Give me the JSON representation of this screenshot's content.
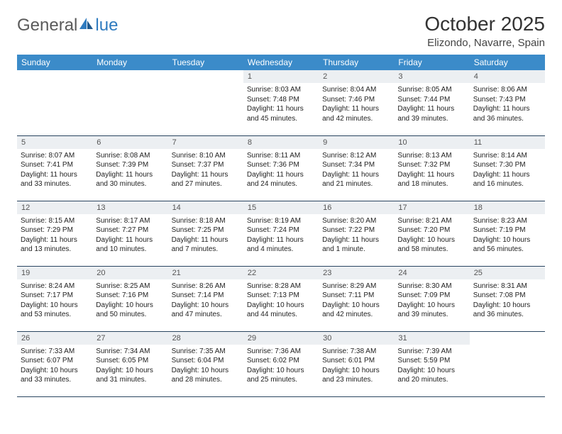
{
  "logo": {
    "part1": "General",
    "part2": "lue"
  },
  "title": "October 2025",
  "subtitle": "Elizondo, Navarre, Spain",
  "colors": {
    "header_bg": "#3b8bc9",
    "header_text": "#ffffff",
    "daynum_bg": "#eceff2",
    "row_border": "#2a4560",
    "logo_gray": "#5a5a5a",
    "logo_blue": "#2f7bbf"
  },
  "day_headers": [
    "Sunday",
    "Monday",
    "Tuesday",
    "Wednesday",
    "Thursday",
    "Friday",
    "Saturday"
  ],
  "weeks": [
    [
      {
        "n": "",
        "sr": "",
        "ss": "",
        "dl": ""
      },
      {
        "n": "",
        "sr": "",
        "ss": "",
        "dl": ""
      },
      {
        "n": "",
        "sr": "",
        "ss": "",
        "dl": ""
      },
      {
        "n": "1",
        "sr": "8:03 AM",
        "ss": "7:48 PM",
        "dl": "11 hours and 45 minutes."
      },
      {
        "n": "2",
        "sr": "8:04 AM",
        "ss": "7:46 PM",
        "dl": "11 hours and 42 minutes."
      },
      {
        "n": "3",
        "sr": "8:05 AM",
        "ss": "7:44 PM",
        "dl": "11 hours and 39 minutes."
      },
      {
        "n": "4",
        "sr": "8:06 AM",
        "ss": "7:43 PM",
        "dl": "11 hours and 36 minutes."
      }
    ],
    [
      {
        "n": "5",
        "sr": "8:07 AM",
        "ss": "7:41 PM",
        "dl": "11 hours and 33 minutes."
      },
      {
        "n": "6",
        "sr": "8:08 AM",
        "ss": "7:39 PM",
        "dl": "11 hours and 30 minutes."
      },
      {
        "n": "7",
        "sr": "8:10 AM",
        "ss": "7:37 PM",
        "dl": "11 hours and 27 minutes."
      },
      {
        "n": "8",
        "sr": "8:11 AM",
        "ss": "7:36 PM",
        "dl": "11 hours and 24 minutes."
      },
      {
        "n": "9",
        "sr": "8:12 AM",
        "ss": "7:34 PM",
        "dl": "11 hours and 21 minutes."
      },
      {
        "n": "10",
        "sr": "8:13 AM",
        "ss": "7:32 PM",
        "dl": "11 hours and 18 minutes."
      },
      {
        "n": "11",
        "sr": "8:14 AM",
        "ss": "7:30 PM",
        "dl": "11 hours and 16 minutes."
      }
    ],
    [
      {
        "n": "12",
        "sr": "8:15 AM",
        "ss": "7:29 PM",
        "dl": "11 hours and 13 minutes."
      },
      {
        "n": "13",
        "sr": "8:17 AM",
        "ss": "7:27 PM",
        "dl": "11 hours and 10 minutes."
      },
      {
        "n": "14",
        "sr": "8:18 AM",
        "ss": "7:25 PM",
        "dl": "11 hours and 7 minutes."
      },
      {
        "n": "15",
        "sr": "8:19 AM",
        "ss": "7:24 PM",
        "dl": "11 hours and 4 minutes."
      },
      {
        "n": "16",
        "sr": "8:20 AM",
        "ss": "7:22 PM",
        "dl": "11 hours and 1 minute."
      },
      {
        "n": "17",
        "sr": "8:21 AM",
        "ss": "7:20 PM",
        "dl": "10 hours and 58 minutes."
      },
      {
        "n": "18",
        "sr": "8:23 AM",
        "ss": "7:19 PM",
        "dl": "10 hours and 56 minutes."
      }
    ],
    [
      {
        "n": "19",
        "sr": "8:24 AM",
        "ss": "7:17 PM",
        "dl": "10 hours and 53 minutes."
      },
      {
        "n": "20",
        "sr": "8:25 AM",
        "ss": "7:16 PM",
        "dl": "10 hours and 50 minutes."
      },
      {
        "n": "21",
        "sr": "8:26 AM",
        "ss": "7:14 PM",
        "dl": "10 hours and 47 minutes."
      },
      {
        "n": "22",
        "sr": "8:28 AM",
        "ss": "7:13 PM",
        "dl": "10 hours and 44 minutes."
      },
      {
        "n": "23",
        "sr": "8:29 AM",
        "ss": "7:11 PM",
        "dl": "10 hours and 42 minutes."
      },
      {
        "n": "24",
        "sr": "8:30 AM",
        "ss": "7:09 PM",
        "dl": "10 hours and 39 minutes."
      },
      {
        "n": "25",
        "sr": "8:31 AM",
        "ss": "7:08 PM",
        "dl": "10 hours and 36 minutes."
      }
    ],
    [
      {
        "n": "26",
        "sr": "7:33 AM",
        "ss": "6:07 PM",
        "dl": "10 hours and 33 minutes."
      },
      {
        "n": "27",
        "sr": "7:34 AM",
        "ss": "6:05 PM",
        "dl": "10 hours and 31 minutes."
      },
      {
        "n": "28",
        "sr": "7:35 AM",
        "ss": "6:04 PM",
        "dl": "10 hours and 28 minutes."
      },
      {
        "n": "29",
        "sr": "7:36 AM",
        "ss": "6:02 PM",
        "dl": "10 hours and 25 minutes."
      },
      {
        "n": "30",
        "sr": "7:38 AM",
        "ss": "6:01 PM",
        "dl": "10 hours and 23 minutes."
      },
      {
        "n": "31",
        "sr": "7:39 AM",
        "ss": "5:59 PM",
        "dl": "10 hours and 20 minutes."
      },
      {
        "n": "",
        "sr": "",
        "ss": "",
        "dl": ""
      }
    ]
  ],
  "labels": {
    "sunrise": "Sunrise: ",
    "sunset": "Sunset: ",
    "daylight": "Daylight: "
  }
}
